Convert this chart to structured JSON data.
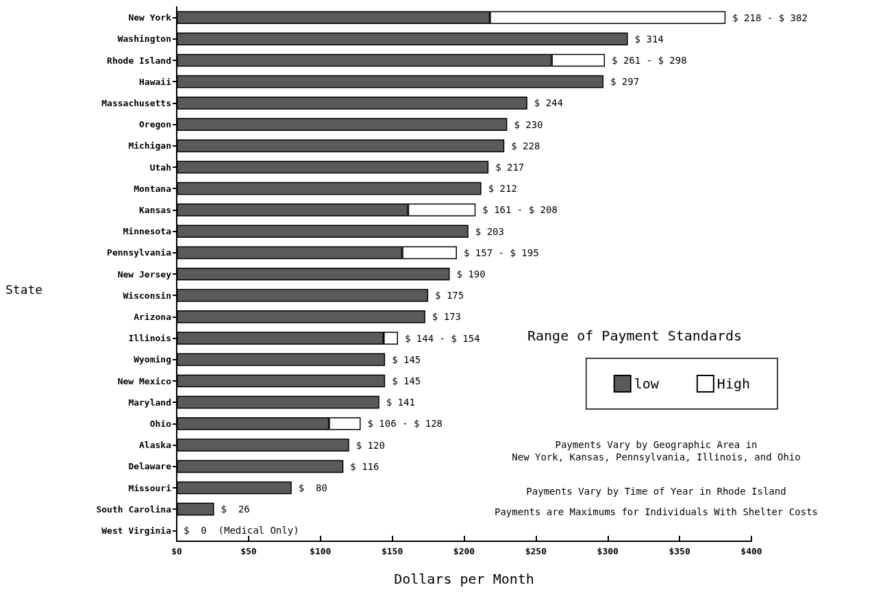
{
  "chart_data": {
    "type": "bar",
    "orientation": "horizontal",
    "stacked": true,
    "xlabel": "Dollars per Month",
    "ylabel": "State",
    "legend_title": "Range of Payment Standards",
    "legend": "right",
    "categories": [
      "New York",
      "Washington",
      "Rhode Island",
      "Hawaii",
      "Massachusetts",
      "Oregon",
      "Michigan",
      "Utah",
      "Montana",
      "Kansas",
      "Minnesota",
      "Pennsylvania",
      "New Jersey",
      "Wisconsin",
      "Arizona",
      "Illinois",
      "Wyoming",
      "New Mexico",
      "Maryland",
      "Ohio",
      "Alaska",
      "Delaware",
      "Missouri",
      "South Carolina",
      "West Virginia"
    ],
    "series": [
      {
        "name": "low",
        "color": "#5a5a5a",
        "values": [
          218,
          314,
          261,
          297,
          244,
          230,
          228,
          217,
          212,
          161,
          203,
          157,
          190,
          175,
          173,
          144,
          145,
          145,
          141,
          106,
          120,
          116,
          80,
          26,
          0
        ],
        "value_labels": [
          null,
          "$ 314",
          null,
          "$ 297",
          "$ 244",
          "$ 230",
          "$ 228",
          "$ 217",
          "$ 212",
          null,
          "$ 203",
          null,
          "$ 190",
          "$ 175",
          "$ 173",
          null,
          "$ 145",
          "$ 145",
          "$ 141",
          null,
          "$ 120",
          "$ 116",
          "$  80",
          "$  26",
          "$  0  (Medical Only)"
        ]
      },
      {
        "name": "High",
        "color": "#ffffff",
        "values": [
          164,
          null,
          37,
          null,
          null,
          null,
          null,
          null,
          null,
          47,
          null,
          38,
          null,
          null,
          null,
          10,
          null,
          null,
          null,
          22,
          null,
          null,
          null,
          null,
          null
        ],
        "value_labels": [
          "$ 218 - $ 382",
          null,
          "$ 261 - $ 298",
          null,
          null,
          null,
          null,
          null,
          null,
          "$ 161 - $ 208",
          null,
          "$ 157 - $ 195",
          null,
          null,
          null,
          "$ 144 - $ 154",
          null,
          null,
          null,
          "$ 106 - $ 128",
          null,
          null,
          null,
          null,
          null
        ]
      }
    ],
    "xlim": [
      0,
      400
    ],
    "xticks": [
      {
        "value": 0,
        "label": "$0"
      },
      {
        "value": 50,
        "label": "$50"
      },
      {
        "value": 100,
        "label": "$100"
      },
      {
        "value": 150,
        "label": "$150"
      },
      {
        "value": 200,
        "label": "$200"
      },
      {
        "value": 250,
        "label": "$250"
      },
      {
        "value": 300,
        "label": "$300"
      },
      {
        "value": 350,
        "label": "$350"
      },
      {
        "value": 400,
        "label": "$400"
      }
    ],
    "annotations": [
      "Payments Vary by Geographic Area in\nNew York, Kansas, Pennsylvania, Illinois, and Ohio",
      "Payments Vary by Time of Year in Rhode Island",
      "Payments are Maximums for Individuals With Shelter Costs"
    ]
  }
}
